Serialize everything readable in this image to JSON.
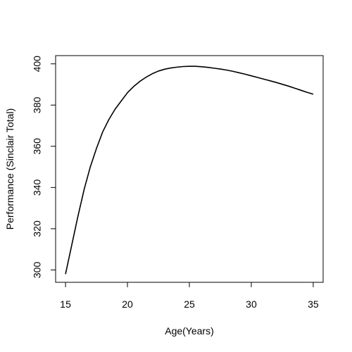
{
  "chart_data": {
    "type": "line",
    "title": "",
    "xlabel": "Age(Years)",
    "ylabel": "Performance (Sinclair Total)",
    "xlim": [
      14.2,
      35.8
    ],
    "ylim": [
      294,
      404
    ],
    "xticks": [
      15,
      20,
      25,
      30,
      35
    ],
    "yticks": [
      300,
      320,
      340,
      360,
      380,
      400
    ],
    "grid": false,
    "legend": "none",
    "series": [
      {
        "color": "#000000",
        "x": [
          15,
          15.5,
          16,
          16.5,
          17,
          17.5,
          18,
          18.5,
          19,
          19.5,
          20,
          20.5,
          21,
          21.5,
          22,
          22.5,
          23,
          23.5,
          24,
          24.5,
          25,
          25.5,
          26,
          26.5,
          27,
          27.5,
          28,
          28.5,
          29,
          29.5,
          30,
          30.5,
          31,
          31.5,
          32,
          32.5,
          33,
          33.5,
          34,
          34.5,
          35
        ],
        "y": [
          298,
          312,
          326,
          339,
          350,
          359,
          367,
          373,
          378,
          382,
          386,
          389,
          391.5,
          393.5,
          395.2,
          396.5,
          397.4,
          398.0,
          398.4,
          398.7,
          398.8,
          398.8,
          398.6,
          398.3,
          397.9,
          397.5,
          397.0,
          396.4,
          395.7,
          395.0,
          394.2,
          393.4,
          392.6,
          391.8,
          391.0,
          390.1,
          389.2,
          388.2,
          387.2,
          386.2,
          385.3
        ]
      }
    ]
  }
}
